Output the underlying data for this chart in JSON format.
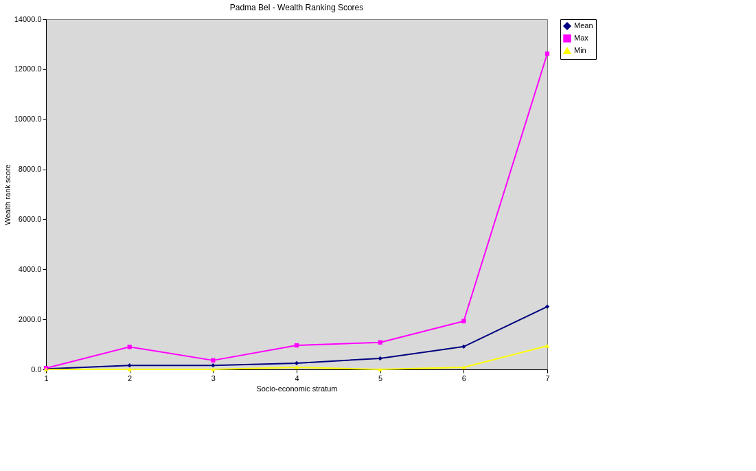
{
  "chart_data": {
    "type": "line",
    "title": "Padma Bel - Wealth Ranking Scores",
    "xlabel": "Socio-economic stratum",
    "ylabel": "Wealth rank score",
    "categories": [
      "1",
      "2",
      "3",
      "4",
      "5",
      "6",
      "7"
    ],
    "series": [
      {
        "name": "Mean",
        "color": "#000080",
        "marker": "diamond",
        "values": [
          20,
          160,
          160,
          250,
          440,
          910,
          2510
        ]
      },
      {
        "name": "Max",
        "color": "#ff00ff",
        "marker": "square",
        "values": [
          50,
          900,
          360,
          960,
          1080,
          1930,
          12620
        ]
      },
      {
        "name": "Min",
        "color": "#ffff00",
        "marker": "triangle",
        "values": [
          0,
          0,
          0,
          80,
          0,
          80,
          940
        ]
      }
    ],
    "ylim": [
      0,
      14000
    ],
    "yticks": [
      {
        "value": 0,
        "label": "0.0"
      },
      {
        "value": 2000,
        "label": "2000.0"
      },
      {
        "value": 4000,
        "label": "4000.0"
      },
      {
        "value": 6000,
        "label": "6000.0"
      },
      {
        "value": 8000,
        "label": "8000.0"
      },
      {
        "value": 10000,
        "label": "10000.0"
      },
      {
        "value": 12000,
        "label": "12000.0"
      },
      {
        "value": 14000,
        "label": "14000.0"
      }
    ],
    "grid": false,
    "legend": "right",
    "line_style": "solid"
  }
}
